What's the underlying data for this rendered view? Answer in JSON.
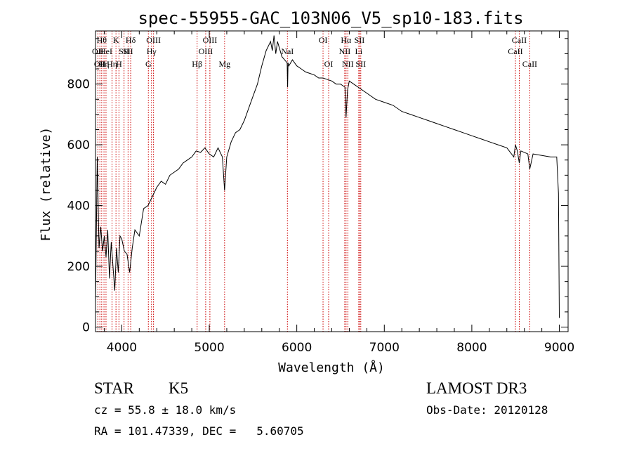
{
  "chart_data": {
    "type": "line",
    "title": "spec-55955-GAC_103N06_V5_sp10-183.fits",
    "xlabel": "Wavelength (Å)",
    "ylabel": "Flux (relative)",
    "xlim": [
      3700,
      9100
    ],
    "ylim": [
      -15,
      975
    ],
    "x_ticks": [
      4000,
      5000,
      6000,
      7000,
      8000,
      9000
    ],
    "y_ticks": [
      0,
      200,
      400,
      600,
      800
    ],
    "grid": false,
    "series": [
      {
        "name": "flux",
        "x": [
          3700,
          3720,
          3740,
          3760,
          3780,
          3800,
          3820,
          3840,
          3860,
          3880,
          3900,
          3920,
          3940,
          3960,
          3980,
          4000,
          4030,
          4060,
          4090,
          4120,
          4150,
          4200,
          4250,
          4300,
          4350,
          4400,
          4450,
          4500,
          4550,
          4600,
          4650,
          4700,
          4750,
          4800,
          4850,
          4900,
          4950,
          5000,
          5050,
          5100,
          5150,
          5175,
          5200,
          5250,
          5300,
          5350,
          5400,
          5450,
          5500,
          5550,
          5600,
          5650,
          5700,
          5720,
          5740,
          5760,
          5780,
          5800,
          5830,
          5860,
          5890,
          5895,
          5900,
          5910,
          5950,
          6000,
          6050,
          6100,
          6150,
          6200,
          6250,
          6300,
          6350,
          6400,
          6450,
          6500,
          6550,
          6563,
          6580,
          6600,
          6650,
          6700,
          6800,
          6900,
          7000,
          7100,
          7200,
          7300,
          7400,
          7500,
          7600,
          7700,
          7800,
          7900,
          8000,
          8100,
          8200,
          8300,
          8400,
          8480,
          8498,
          8520,
          8542,
          8560,
          8600,
          8640,
          8662,
          8700,
          8800,
          8900,
          8970,
          8990,
          9000
        ],
        "y": [
          80,
          560,
          260,
          330,
          250,
          300,
          230,
          320,
          160,
          280,
          200,
          120,
          260,
          180,
          300,
          290,
          250,
          240,
          180,
          260,
          320,
          300,
          390,
          400,
          430,
          460,
          480,
          470,
          500,
          510,
          520,
          540,
          550,
          560,
          580,
          575,
          590,
          570,
          560,
          590,
          560,
          450,
          560,
          610,
          640,
          650,
          680,
          720,
          760,
          800,
          860,
          910,
          940,
          910,
          960,
          900,
          940,
          920,
          890,
          880,
          870,
          790,
          870,
          860,
          880,
          860,
          850,
          840,
          835,
          830,
          820,
          820,
          815,
          810,
          800,
          800,
          790,
          690,
          780,
          810,
          800,
          790,
          770,
          750,
          740,
          730,
          710,
          700,
          690,
          680,
          670,
          660,
          650,
          640,
          630,
          620,
          610,
          600,
          590,
          560,
          600,
          580,
          540,
          580,
          575,
          570,
          520,
          570,
          565,
          560,
          560,
          440,
          30
        ]
      }
    ],
    "line_markers": [
      {
        "x": 3727,
        "label": "OII",
        "row": 2
      },
      {
        "x": 3750,
        "label": "OII",
        "row": 3
      },
      {
        "x": 3771,
        "label": "Hθ",
        "row": 1
      },
      {
        "x": 3797,
        "label": "Hη",
        "row": 3
      },
      {
        "x": 3820,
        "label": "HeI",
        "row": 2
      },
      {
        "x": 3889,
        "label": "Hη",
        "row": 3
      },
      {
        "x": 3934,
        "label": "K",
        "row": 1
      },
      {
        "x": 3968,
        "label": "H",
        "row": 3
      },
      {
        "x": 4026,
        "label": "SII",
        "row": 2
      },
      {
        "x": 4102,
        "label": "Hδ",
        "row": 1
      },
      {
        "x": 4072,
        "label": "SII",
        "row": 2
      },
      {
        "x": 4304,
        "label": "G",
        "row": 3
      },
      {
        "x": 4340,
        "label": "Hγ",
        "row": 2
      },
      {
        "x": 4363,
        "label": "OIII",
        "row": 1
      },
      {
        "x": 4861,
        "label": "Hβ",
        "row": 3
      },
      {
        "x": 4959,
        "label": "OIII",
        "row": 2
      },
      {
        "x": 5007,
        "label": "OIII",
        "row": 1
      },
      {
        "x": 5175,
        "label": "Mg",
        "row": 3
      },
      {
        "x": 5893,
        "label": "NaI",
        "row": 2
      },
      {
        "x": 6300,
        "label": "OI",
        "row": 1
      },
      {
        "x": 6364,
        "label": "OI",
        "row": 3
      },
      {
        "x": 6548,
        "label": "NII",
        "row": 2
      },
      {
        "x": 6563,
        "label": "Hα",
        "row": 1
      },
      {
        "x": 6583,
        "label": "NII",
        "row": 3
      },
      {
        "x": 6708,
        "label": "Li",
        "row": 2
      },
      {
        "x": 6716,
        "label": "SII",
        "row": 1
      },
      {
        "x": 6731,
        "label": "SII",
        "row": 3
      },
      {
        "x": 8498,
        "label": "CaII",
        "row": 2
      },
      {
        "x": 8542,
        "label": "CaII",
        "row": 1
      },
      {
        "x": 8662,
        "label": "CaII",
        "row": 3
      }
    ]
  },
  "info": {
    "class_label": "STAR",
    "subclass": "K5",
    "survey": "LAMOST DR3",
    "redshift_text": "cz = 55.8 ± 18.0 km/s",
    "obs_date": "Obs-Date: 20120128",
    "coords": "RA = 101.47339, DEC =   5.60705"
  },
  "colors": {
    "line": "#000000",
    "marker": "#cc0000",
    "text": "#000000",
    "background": "#ffffff"
  }
}
